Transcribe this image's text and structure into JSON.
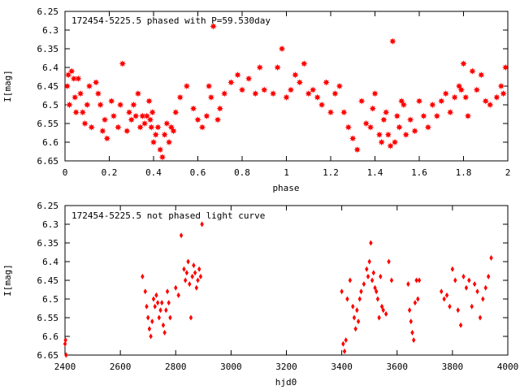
{
  "chart_data": [
    {
      "type": "scatter",
      "title": "172454-5225.5 phased with P=59.530day",
      "xlabel": "phase",
      "ylabel": "I[mag]",
      "xlim": [
        0,
        2
      ],
      "ylim": [
        6.25,
        6.65
      ],
      "y_inverted": true,
      "grid": false,
      "marker": "red star",
      "x_ticks": [
        "0",
        "0.2",
        "0.4",
        "0.6",
        "0.8",
        "1",
        "1.2",
        "1.4",
        "1.6",
        "1.8",
        "2"
      ],
      "y_ticks": [
        "6.25",
        "6.3",
        "6.35",
        "6.4",
        "6.45",
        "6.5",
        "6.55",
        "6.6",
        "6.65"
      ],
      "x": [
        0.01,
        0.015,
        0.02,
        0.03,
        0.04,
        0.045,
        0.05,
        0.06,
        0.07,
        0.08,
        0.09,
        0.1,
        0.11,
        0.12,
        0.14,
        0.15,
        0.16,
        0.17,
        0.18,
        0.19,
        0.21,
        0.22,
        0.24,
        0.25,
        0.26,
        0.28,
        0.29,
        0.3,
        0.31,
        0.32,
        0.33,
        0.34,
        0.35,
        0.36,
        0.37,
        0.38,
        0.385,
        0.39,
        0.395,
        0.4,
        0.41,
        0.42,
        0.43,
        0.44,
        0.45,
        0.46,
        0.47,
        0.48,
        0.49,
        0.5,
        0.52,
        0.55,
        0.58,
        0.6,
        0.62,
        0.64,
        0.65,
        0.66,
        0.67,
        0.69,
        0.7,
        0.72,
        0.75,
        0.78,
        0.8,
        0.83,
        0.86,
        0.88,
        0.9,
        0.94,
        0.96,
        0.98,
        1.0,
        1.02,
        1.04,
        1.06,
        1.08,
        1.1,
        1.12,
        1.14,
        1.16,
        1.18,
        1.2,
        1.22,
        1.24,
        1.26,
        1.28,
        1.3,
        1.32,
        1.34,
        1.36,
        1.38,
        1.39,
        1.4,
        1.42,
        1.43,
        1.44,
        1.45,
        1.46,
        1.47,
        1.48,
        1.49,
        1.5,
        1.51,
        1.52,
        1.53,
        1.54,
        1.56,
        1.58,
        1.6,
        1.62,
        1.64,
        1.66,
        1.68,
        1.7,
        1.72,
        1.74,
        1.76,
        1.78,
        1.79,
        1.8,
        1.81,
        1.82,
        1.84,
        1.86,
        1.88,
        1.9,
        1.92,
        1.95,
        1.97,
        1.98,
        1.99
      ],
      "y": [
        6.45,
        6.42,
        6.5,
        6.41,
        6.43,
        6.48,
        6.52,
        6.43,
        6.47,
        6.52,
        6.55,
        6.5,
        6.45,
        6.56,
        6.44,
        6.47,
        6.5,
        6.57,
        6.54,
        6.59,
        6.49,
        6.53,
        6.56,
        6.5,
        6.39,
        6.57,
        6.52,
        6.54,
        6.5,
        6.53,
        6.47,
        6.56,
        6.53,
        6.55,
        6.53,
        6.49,
        6.54,
        6.56,
        6.52,
        6.6,
        6.58,
        6.56,
        6.62,
        6.64,
        6.58,
        6.55,
        6.6,
        6.56,
        6.57,
        6.52,
        6.48,
        6.45,
        6.51,
        6.54,
        6.56,
        6.53,
        6.45,
        6.48,
        6.29,
        6.54,
        6.51,
        6.47,
        6.44,
        6.42,
        6.46,
        6.43,
        6.47,
        6.4,
        6.46,
        6.47,
        6.4,
        6.35,
        6.48,
        6.46,
        6.42,
        6.44,
        6.39,
        6.47,
        6.46,
        6.48,
        6.5,
        6.44,
        6.52,
        6.47,
        6.45,
        6.52,
        6.56,
        6.59,
        6.62,
        6.49,
        6.55,
        6.56,
        6.51,
        6.47,
        6.58,
        6.6,
        6.54,
        6.52,
        6.58,
        6.61,
        6.33,
        6.6,
        6.53,
        6.56,
        6.49,
        6.5,
        6.58,
        6.54,
        6.57,
        6.49,
        6.53,
        6.56,
        6.5,
        6.53,
        6.49,
        6.47,
        6.52,
        6.48,
        6.45,
        6.46,
        6.39,
        6.48,
        6.53,
        6.41,
        6.46,
        6.42,
        6.49,
        6.5,
        6.48,
        6.45,
        6.47,
        6.4
      ]
    },
    {
      "type": "scatter",
      "title": "172454-5225.5 not phased light curve",
      "xlabel": "hjd0",
      "ylabel": "I[mag]",
      "xlim": [
        2400,
        4000
      ],
      "ylim": [
        6.25,
        6.65
      ],
      "y_inverted": true,
      "grid": false,
      "marker": "red diamond",
      "x_ticks": [
        "2400",
        "2600",
        "2800",
        "3000",
        "3200",
        "3400",
        "3600",
        "3800",
        "4000"
      ],
      "y_ticks": [
        "6.25",
        "6.3",
        "6.35",
        "6.4",
        "6.45",
        "6.5",
        "6.55",
        "6.6",
        "6.65"
      ],
      "x": [
        2400,
        2402,
        2404,
        2680,
        2690,
        2695,
        2700,
        2705,
        2710,
        2715,
        2720,
        2725,
        2730,
        2735,
        2740,
        2745,
        2750,
        2755,
        2760,
        2765,
        2770,
        2775,
        2780,
        2800,
        2810,
        2820,
        2830,
        2835,
        2840,
        2845,
        2850,
        2855,
        2860,
        2865,
        2870,
        2875,
        2880,
        2885,
        2890,
        2895,
        3400,
        3405,
        3410,
        3415,
        3420,
        3430,
        3440,
        3445,
        3450,
        3455,
        3460,
        3465,
        3470,
        3480,
        3490,
        3495,
        3500,
        3505,
        3510,
        3515,
        3520,
        3525,
        3530,
        3535,
        3540,
        3545,
        3550,
        3560,
        3570,
        3580,
        3640,
        3645,
        3650,
        3655,
        3660,
        3665,
        3670,
        3675,
        3680,
        3760,
        3770,
        3780,
        3790,
        3800,
        3810,
        3820,
        3830,
        3840,
        3850,
        3860,
        3870,
        3880,
        3890,
        3900,
        3910,
        3920,
        3930,
        3940
      ],
      "y": [
        6.62,
        6.61,
        6.65,
        6.44,
        6.48,
        6.52,
        6.55,
        6.58,
        6.6,
        6.56,
        6.5,
        6.52,
        6.49,
        6.51,
        6.55,
        6.53,
        6.51,
        6.57,
        6.59,
        6.53,
        6.48,
        6.51,
        6.55,
        6.47,
        6.49,
        6.33,
        6.42,
        6.45,
        6.43,
        6.4,
        6.46,
        6.55,
        6.44,
        6.41,
        6.43,
        6.47,
        6.45,
        6.42,
        6.44,
        6.3,
        6.48,
        6.62,
        6.64,
        6.61,
        6.5,
        6.45,
        6.52,
        6.55,
        6.58,
        6.53,
        6.56,
        6.5,
        6.48,
        6.46,
        6.42,
        6.44,
        6.4,
        6.35,
        6.45,
        6.43,
        6.47,
        6.48,
        6.5,
        6.55,
        6.44,
        6.52,
        6.53,
        6.54,
        6.4,
        6.45,
        6.46,
        6.53,
        6.56,
        6.59,
        6.61,
        6.51,
        6.45,
        6.5,
        6.45,
        6.48,
        6.5,
        6.49,
        6.52,
        6.42,
        6.45,
        6.53,
        6.57,
        6.44,
        6.47,
        6.45,
        6.52,
        6.46,
        6.48,
        6.55,
        6.5,
        6.47,
        6.44,
        6.39
      ]
    }
  ]
}
